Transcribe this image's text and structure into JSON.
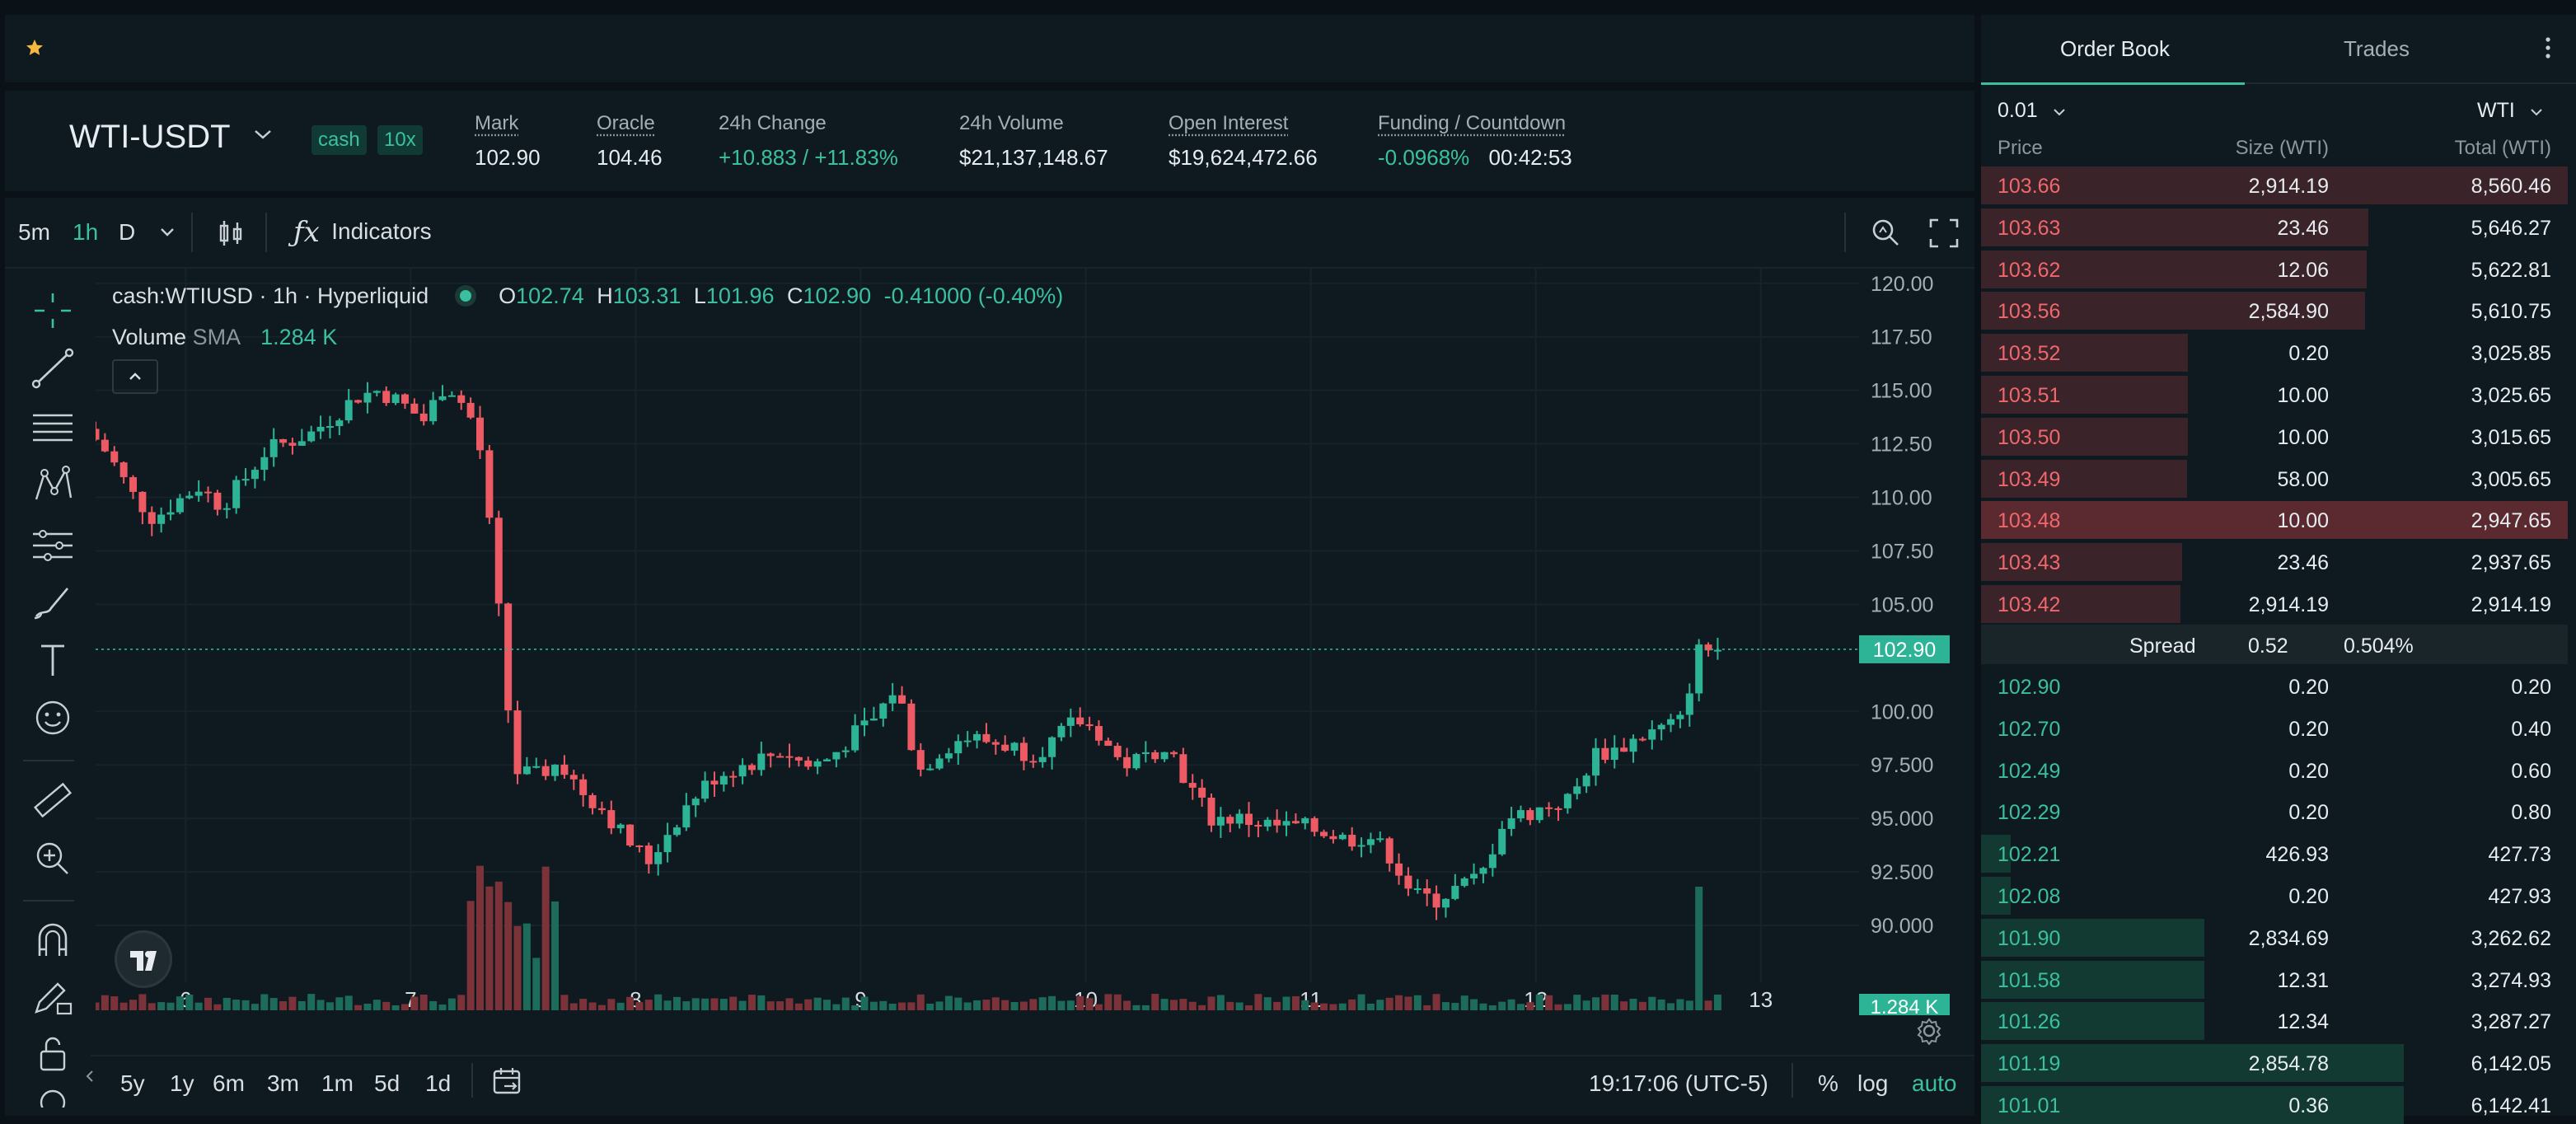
{
  "market": {
    "symbol": "WTI-USDT",
    "badge_cash": "cash",
    "badge_leverage": "10x",
    "stats": [
      {
        "label": "Mark",
        "value": "102.90",
        "underline": true,
        "color": "#e6ecef"
      },
      {
        "label": "Oracle",
        "value": "104.46",
        "underline": true,
        "color": "#e6ecef"
      },
      {
        "label": "24h Change",
        "value": "+10.883 / +11.83%",
        "underline": false,
        "color": "#3ac0a0"
      },
      {
        "label": "24h Volume",
        "value": "$21,137,148.67",
        "underline": false,
        "color": "#e6ecef"
      },
      {
        "label": "Open Interest",
        "value": "$19,624,472.66",
        "underline": true,
        "color": "#e6ecef"
      }
    ],
    "funding_label": "Funding / Countdown",
    "funding_rate": "-0.0968%",
    "countdown": "00:42:53"
  },
  "chart_toolbar": {
    "tf_5m": "5m",
    "tf_1h": "1h",
    "tf_d": "D",
    "indicators": "Indicators"
  },
  "legend": {
    "title": "cash:WTIUSD · 1h · Hyperliquid",
    "o_label": "O",
    "o": "102.74",
    "h_label": "H",
    "h": "103.31",
    "l_label": "L",
    "l": "101.96",
    "c_label": "C",
    "c": "102.90",
    "change": "-0.41000 (-0.40%)",
    "volume_label": "Volume",
    "sma_label": "SMA",
    "sma_value": "1.284 K"
  },
  "chart_data": {
    "type": "candlestick",
    "interval": "1h",
    "price_axis_ticks": [
      "120.00",
      "117.50",
      "115.00",
      "112.50",
      "110.00",
      "107.50",
      "105.00",
      "102.90",
      "100.00",
      "97.500",
      "95.000",
      "92.500",
      "90.000",
      "1.284 K"
    ],
    "ylim": [
      89.5,
      120.3
    ],
    "x_ticks": [
      "6",
      "7",
      "8",
      "9",
      "10",
      "11",
      "12",
      "13"
    ],
    "last_price": 102.9,
    "volume_sma": "1.284 K",
    "close_path": [
      [
        5.6,
        113.2
      ],
      [
        5.7,
        112.0
      ],
      [
        5.8,
        110.2
      ],
      [
        5.9,
        109.0
      ],
      [
        6.0,
        109.8
      ],
      [
        6.1,
        110.5
      ],
      [
        6.2,
        109.6
      ],
      [
        6.3,
        110.8
      ],
      [
        6.4,
        112.2
      ],
      [
        6.5,
        112.6
      ],
      [
        6.6,
        113.0
      ],
      [
        6.7,
        113.8
      ],
      [
        6.8,
        114.7
      ],
      [
        6.9,
        115.0
      ],
      [
        7.0,
        114.4
      ],
      [
        7.1,
        113.6
      ],
      [
        7.2,
        115.4
      ],
      [
        7.3,
        114.0
      ],
      [
        7.35,
        112.2
      ],
      [
        7.4,
        108.0
      ],
      [
        7.45,
        103.0
      ],
      [
        7.5,
        97.2
      ],
      [
        7.6,
        97.0
      ],
      [
        7.7,
        97.6
      ],
      [
        7.8,
        96.3
      ],
      [
        7.9,
        95.4
      ],
      [
        8.0,
        94.0
      ],
      [
        8.1,
        93.0
      ],
      [
        8.2,
        94.6
      ],
      [
        8.3,
        96.0
      ],
      [
        8.4,
        97.0
      ],
      [
        8.5,
        97.4
      ],
      [
        8.6,
        97.8
      ],
      [
        8.7,
        98.2
      ],
      [
        8.8,
        97.4
      ],
      [
        8.9,
        97.8
      ],
      [
        9.0,
        98.8
      ],
      [
        9.1,
        99.6
      ],
      [
        9.2,
        101.2
      ],
      [
        9.3,
        97.2
      ],
      [
        9.4,
        98.2
      ],
      [
        9.5,
        98.8
      ],
      [
        9.6,
        98.6
      ],
      [
        9.7,
        98.4
      ],
      [
        9.8,
        98.0
      ],
      [
        9.9,
        98.6
      ],
      [
        10.0,
        99.6
      ],
      [
        10.1,
        99.0
      ],
      [
        10.2,
        97.5
      ],
      [
        10.3,
        97.8
      ],
      [
        10.4,
        98.6
      ],
      [
        10.5,
        96.5
      ],
      [
        10.6,
        95.0
      ],
      [
        10.7,
        95.0
      ],
      [
        10.8,
        94.8
      ],
      [
        10.9,
        94.6
      ],
      [
        11.0,
        94.6
      ],
      [
        11.1,
        94.4
      ],
      [
        11.2,
        94.0
      ],
      [
        11.3,
        94.2
      ],
      [
        11.4,
        93.2
      ],
      [
        11.5,
        91.4
      ],
      [
        11.6,
        91.2
      ],
      [
        11.7,
        91.8
      ],
      [
        11.8,
        92.3
      ],
      [
        11.9,
        95.0
      ],
      [
        12.0,
        95.2
      ],
      [
        12.1,
        95.6
      ],
      [
        12.2,
        95.9
      ],
      [
        12.3,
        98.0
      ],
      [
        12.4,
        98.2
      ],
      [
        12.5,
        98.8
      ],
      [
        12.6,
        99.2
      ],
      [
        12.7,
        99.6
      ],
      [
        12.75,
        102.8
      ],
      [
        12.8,
        102.9
      ]
    ]
  },
  "axis_time": "19:17:06 (UTC-5)",
  "bottom_bar": {
    "ranges": [
      "5y",
      "1y",
      "6m",
      "3m",
      "1m",
      "5d",
      "1d"
    ],
    "pct": "%",
    "log": "log",
    "auto": "auto"
  },
  "orderbook": {
    "tab_book": "Order Book",
    "tab_trades": "Trades",
    "tick": "0.01",
    "unit": "WTI",
    "col_price": "Price",
    "col_size": "Size (WTI)",
    "col_total": "Total (WTI)",
    "spread_label": "Spread",
    "spread_value": "0.52",
    "spread_pct": "0.504%",
    "asks": [
      {
        "price": "103.66",
        "size": "2,914.19",
        "total": "8,560.46",
        "depth": 1.0
      },
      {
        "price": "103.63",
        "size": "23.46",
        "total": "5,646.27",
        "depth": 0.66
      },
      {
        "price": "103.62",
        "size": "12.06",
        "total": "5,622.81",
        "depth": 0.657
      },
      {
        "price": "103.56",
        "size": "2,584.90",
        "total": "5,610.75",
        "depth": 0.655
      },
      {
        "price": "103.52",
        "size": "0.20",
        "total": "3,025.85",
        "depth": 0.353
      },
      {
        "price": "103.51",
        "size": "10.00",
        "total": "3,025.65",
        "depth": 0.353
      },
      {
        "price": "103.50",
        "size": "10.00",
        "total": "3,015.65",
        "depth": 0.352
      },
      {
        "price": "103.49",
        "size": "58.00",
        "total": "3,005.65",
        "depth": 0.351
      },
      {
        "price": "103.48",
        "size": "10.00",
        "total": "2,947.65",
        "depth": 0.344
      },
      {
        "price": "103.43",
        "size": "23.46",
        "total": "2,937.65",
        "depth": 0.343
      },
      {
        "price": "103.42",
        "size": "2,914.19",
        "total": "2,914.19",
        "depth": 0.34
      }
    ],
    "bids": [
      {
        "price": "102.90",
        "size": "0.20",
        "total": "0.20",
        "depth": 0.0
      },
      {
        "price": "102.70",
        "size": "0.20",
        "total": "0.40",
        "depth": 0.0
      },
      {
        "price": "102.49",
        "size": "0.20",
        "total": "0.60",
        "depth": 0.0
      },
      {
        "price": "102.29",
        "size": "0.20",
        "total": "0.80",
        "depth": 0.0
      },
      {
        "price": "102.21",
        "size": "426.93",
        "total": "427.73",
        "depth": 0.05
      },
      {
        "price": "102.08",
        "size": "0.20",
        "total": "427.93",
        "depth": 0.05
      },
      {
        "price": "101.90",
        "size": "2,834.69",
        "total": "3,262.62",
        "depth": 0.38
      },
      {
        "price": "101.58",
        "size": "12.31",
        "total": "3,274.93",
        "depth": 0.38
      },
      {
        "price": "101.26",
        "size": "12.34",
        "total": "3,287.27",
        "depth": 0.38
      },
      {
        "price": "101.19",
        "size": "2,854.78",
        "total": "6,142.05",
        "depth": 0.72
      },
      {
        "price": "101.01",
        "size": "0.36",
        "total": "6,142.41",
        "depth": 0.72
      }
    ]
  }
}
